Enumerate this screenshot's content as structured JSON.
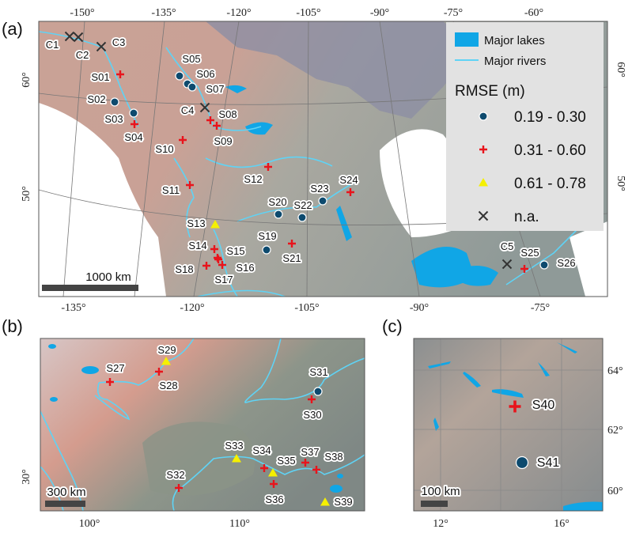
{
  "panels": {
    "a": {
      "label": "(a)",
      "top_ticks": [
        "-150°",
        "-135°",
        "-120°",
        "-105°",
        "-90°",
        "-75°",
        "-60°"
      ],
      "bottom_ticks": [
        "-135°",
        "-120°",
        "-105°",
        "-90°",
        "-75°"
      ],
      "left_ticks": [
        "60°",
        "50°"
      ],
      "right_ticks": [
        "60°",
        "50°"
      ],
      "scale_bar": "1000  km"
    },
    "b": {
      "label": "(b)",
      "bottom_ticks": [
        "100°",
        "110°"
      ],
      "left_ticks": [
        "30°"
      ],
      "scale_bar": "300  km"
    },
    "c": {
      "label": "(c)",
      "bottom_ticks": [
        "12°",
        "16°"
      ],
      "right_ticks": [
        "64°",
        "62°",
        "60°"
      ],
      "scale_bar": "100 km"
    }
  },
  "legend": {
    "lakes": "Major lakes",
    "rivers": "Major rivers",
    "title": "RMSE (m)",
    "classes": [
      {
        "key": "circle",
        "label": "0.19 - 0.30",
        "color": "#0d4a6e"
      },
      {
        "key": "plus",
        "label": "0.31 - 0.60",
        "color": "#e8141c"
      },
      {
        "key": "triangle",
        "label": "0.61 - 0.78",
        "color": "#f5f000"
      },
      {
        "key": "x",
        "label": "n.a.",
        "color": "#333333"
      }
    ]
  },
  "colors": {
    "lake": "#10a6e6",
    "river": "#5fd3f5"
  },
  "stations": [
    {
      "id": "C1",
      "cls": "x"
    },
    {
      "id": "C2",
      "cls": "x"
    },
    {
      "id": "C3",
      "cls": "x"
    },
    {
      "id": "C4",
      "cls": "x"
    },
    {
      "id": "C5",
      "cls": "x"
    },
    {
      "id": "S01",
      "cls": "plus"
    },
    {
      "id": "S02",
      "cls": "circle"
    },
    {
      "id": "S03",
      "cls": "circle"
    },
    {
      "id": "S04",
      "cls": "plus"
    },
    {
      "id": "S05",
      "cls": "circle"
    },
    {
      "id": "S06",
      "cls": "circle"
    },
    {
      "id": "S07",
      "cls": "circle"
    },
    {
      "id": "S08",
      "cls": "plus"
    },
    {
      "id": "S09",
      "cls": "plus"
    },
    {
      "id": "S10",
      "cls": "plus"
    },
    {
      "id": "S11",
      "cls": "plus"
    },
    {
      "id": "S12",
      "cls": "plus"
    },
    {
      "id": "S13",
      "cls": "triangle"
    },
    {
      "id": "S14",
      "cls": "plus"
    },
    {
      "id": "S15",
      "cls": "plus"
    },
    {
      "id": "S16",
      "cls": "plus"
    },
    {
      "id": "S17",
      "cls": "plus"
    },
    {
      "id": "S18",
      "cls": "plus"
    },
    {
      "id": "S19",
      "cls": "circle"
    },
    {
      "id": "S20",
      "cls": "circle"
    },
    {
      "id": "S21",
      "cls": "plus"
    },
    {
      "id": "S22",
      "cls": "circle"
    },
    {
      "id": "S23",
      "cls": "circle"
    },
    {
      "id": "S24",
      "cls": "plus"
    },
    {
      "id": "S25",
      "cls": "plus"
    },
    {
      "id": "S26",
      "cls": "circle"
    },
    {
      "id": "S27",
      "cls": "plus"
    },
    {
      "id": "S28",
      "cls": "plus"
    },
    {
      "id": "S29",
      "cls": "triangle"
    },
    {
      "id": "S30",
      "cls": "plus"
    },
    {
      "id": "S31",
      "cls": "circle"
    },
    {
      "id": "S32",
      "cls": "plus"
    },
    {
      "id": "S33",
      "cls": "triangle"
    },
    {
      "id": "S34",
      "cls": "plus"
    },
    {
      "id": "S35",
      "cls": "triangle"
    },
    {
      "id": "S36",
      "cls": "plus"
    },
    {
      "id": "S37",
      "cls": "plus"
    },
    {
      "id": "S38",
      "cls": "plus"
    },
    {
      "id": "S39",
      "cls": "triangle"
    },
    {
      "id": "S40",
      "cls": "plus"
    },
    {
      "id": "S41",
      "cls": "circle"
    }
  ]
}
